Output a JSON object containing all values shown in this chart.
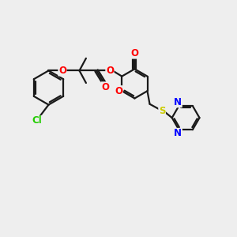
{
  "background_color": "#eeeeee",
  "bond_color": "#1a1a1a",
  "O_color": "#ff0000",
  "N_color": "#0000ff",
  "S_color": "#cccc00",
  "Cl_color": "#22cc00",
  "lw": 1.6,
  "figsize": [
    3.0,
    3.0
  ],
  "dpi": 100,
  "xlim": [
    0,
    10
  ],
  "ylim": [
    0,
    10
  ]
}
